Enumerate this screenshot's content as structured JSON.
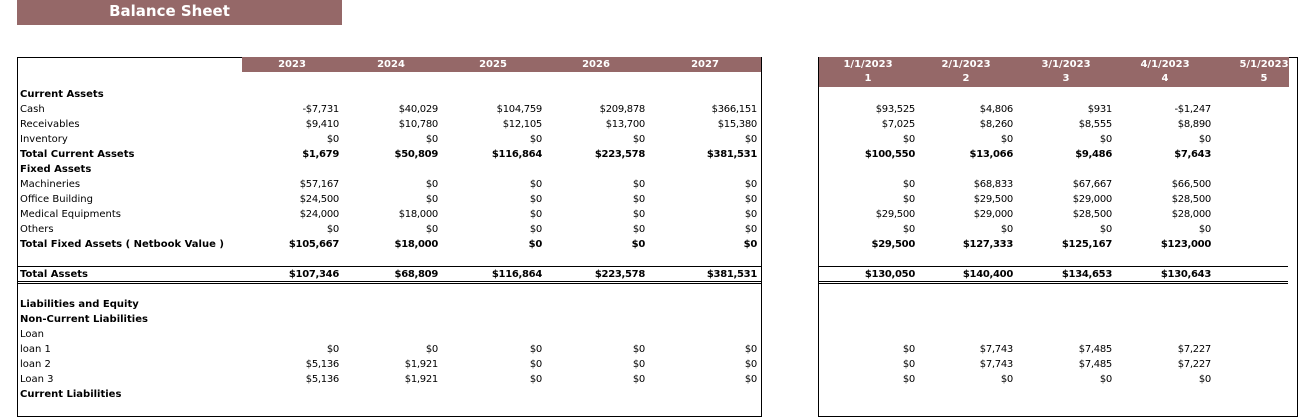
{
  "title": "Balance Sheet",
  "colors": {
    "header_bg": "#956868",
    "header_text": "#ffffff"
  },
  "annual": {
    "columns": [
      "2023",
      "2024",
      "2025",
      "2026",
      "2027"
    ]
  },
  "monthly": {
    "columns": [
      {
        "date": "1/1/2023",
        "index": "1"
      },
      {
        "date": "2/1/2023",
        "index": "2"
      },
      {
        "date": "3/1/2023",
        "index": "3"
      },
      {
        "date": "4/1/2023",
        "index": "4"
      },
      {
        "date": "5/1/2023",
        "index": "5"
      }
    ]
  },
  "rows": [
    {
      "label": "Current Assets",
      "bold": true,
      "annual": [],
      "monthly": []
    },
    {
      "label": "Cash",
      "bold": false,
      "annual": [
        "-$7,731",
        "$40,029",
        "$104,759",
        "$209,878",
        "$366,151"
      ],
      "monthly": [
        "$93,525",
        "$4,806",
        "$931",
        "-$1,247"
      ]
    },
    {
      "label": "Receivables",
      "bold": false,
      "annual": [
        "$9,410",
        "$10,780",
        "$12,105",
        "$13,700",
        "$15,380"
      ],
      "monthly": [
        "$7,025",
        "$8,260",
        "$8,555",
        "$8,890"
      ]
    },
    {
      "label": "Inventory",
      "bold": false,
      "annual": [
        "$0",
        "$0",
        "$0",
        "$0",
        "$0"
      ],
      "monthly": [
        "$0",
        "$0",
        "$0",
        "$0"
      ]
    },
    {
      "label": "Total Current Assets",
      "bold": true,
      "annual": [
        "$1,679",
        "$50,809",
        "$116,864",
        "$223,578",
        "$381,531"
      ],
      "monthly": [
        "$100,550",
        "$13,066",
        "$9,486",
        "$7,643"
      ]
    },
    {
      "label": "Fixed Assets",
      "bold": true,
      "annual": [],
      "monthly": []
    },
    {
      "label": "Machineries",
      "bold": false,
      "annual": [
        "$57,167",
        "$0",
        "$0",
        "$0",
        "$0"
      ],
      "monthly": [
        "$0",
        "$68,833",
        "$67,667",
        "$66,500"
      ]
    },
    {
      "label": "Office Building",
      "bold": false,
      "annual": [
        "$24,500",
        "$0",
        "$0",
        "$0",
        "$0"
      ],
      "monthly": [
        "$0",
        "$29,500",
        "$29,000",
        "$28,500"
      ]
    },
    {
      "label": "Medical Equipments",
      "bold": false,
      "annual": [
        "$24,000",
        "$18,000",
        "$0",
        "$0",
        "$0"
      ],
      "monthly": [
        "$29,500",
        "$29,000",
        "$28,500",
        "$28,000"
      ]
    },
    {
      "label": "Others",
      "bold": false,
      "annual": [
        "$0",
        "$0",
        "$0",
        "$0",
        "$0"
      ],
      "monthly": [
        "$0",
        "$0",
        "$0",
        "$0"
      ]
    },
    {
      "label": "Total Fixed Assets ( Netbook Value )",
      "bold": true,
      "annual": [
        "$105,667",
        "$18,000",
        "$0",
        "$0",
        "$0"
      ],
      "monthly": [
        "$29,500",
        "$127,333",
        "$125,167",
        "$123,000"
      ]
    },
    {
      "label": "",
      "bold": false,
      "annual": [],
      "monthly": []
    },
    {
      "label": "Total Assets",
      "bold": true,
      "annual": [
        "$107,346",
        "$68,809",
        "$116,864",
        "$223,578",
        "$381,531"
      ],
      "monthly": [
        "$130,050",
        "$140,400",
        "$134,653",
        "$130,643"
      ]
    },
    {
      "label": "",
      "bold": false,
      "annual": [],
      "monthly": []
    },
    {
      "label": "Liabilities and Equity",
      "bold": true,
      "annual": [],
      "monthly": []
    },
    {
      "label": "Non-Current Liabilities",
      "bold": true,
      "annual": [],
      "monthly": []
    },
    {
      "label": "Loan",
      "bold": false,
      "annual": [],
      "monthly": []
    },
    {
      "label": "loan 1",
      "bold": false,
      "annual": [
        "$0",
        "$0",
        "$0",
        "$0",
        "$0"
      ],
      "monthly": [
        "$0",
        "$7,743",
        "$7,485",
        "$7,227"
      ]
    },
    {
      "label": "loan 2",
      "bold": false,
      "annual": [
        "$5,136",
        "$1,921",
        "$0",
        "$0",
        "$0"
      ],
      "monthly": [
        "$0",
        "$7,743",
        "$7,485",
        "$7,227"
      ]
    },
    {
      "label": "Loan 3",
      "bold": false,
      "annual": [
        "$5,136",
        "$1,921",
        "$0",
        "$0",
        "$0"
      ],
      "monthly": [
        "$0",
        "$0",
        "$0",
        "$0"
      ]
    },
    {
      "label": "Current Liabilities",
      "bold": true,
      "annual": [],
      "monthly": []
    }
  ]
}
